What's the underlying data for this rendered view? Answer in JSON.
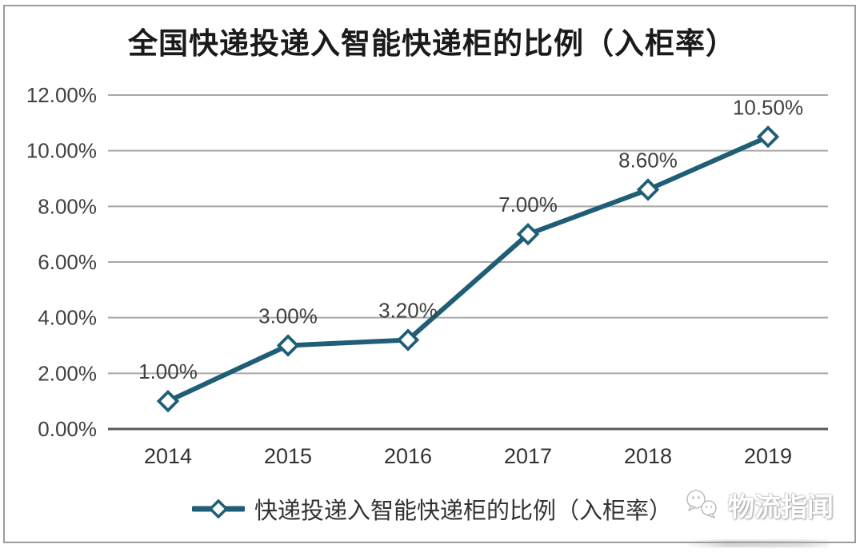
{
  "chart_data": {
    "type": "line",
    "title": "全国快递投递入智能快递柜的比例（入柜率）",
    "categories": [
      "2014",
      "2015",
      "2016",
      "2017",
      "2018",
      "2019"
    ],
    "series": [
      {
        "name": "快递投递入智能快递柜的比例（入柜率）",
        "values": [
          1.0,
          3.0,
          3.2,
          7.0,
          8.6,
          10.5
        ],
        "data_labels": [
          "1.00%",
          "3.00%",
          "3.20%",
          "7.00%",
          "8.60%",
          "10.50%"
        ]
      }
    ],
    "xlabel": "",
    "ylabel": "",
    "ylim": [
      0,
      12
    ],
    "ytick_step": 2,
    "ytick_labels": [
      "0.00%",
      "2.00%",
      "4.00%",
      "6.00%",
      "8.00%",
      "10.00%",
      "12.00%"
    ],
    "grid": true,
    "legend_position": "bottom",
    "marker": "hollow-diamond"
  },
  "colors": {
    "line": "#1F5E76",
    "marker_fill": "#ffffff",
    "gridline": "#a8a8a8",
    "zero_axis": "#595959",
    "tick_label": "#404040",
    "data_label": "#404040",
    "title_text": "#1a1a1a",
    "frame_border": "#9b9b9b"
  },
  "watermark": {
    "text": "物流指闻",
    "icon": "wechat-icon"
  }
}
